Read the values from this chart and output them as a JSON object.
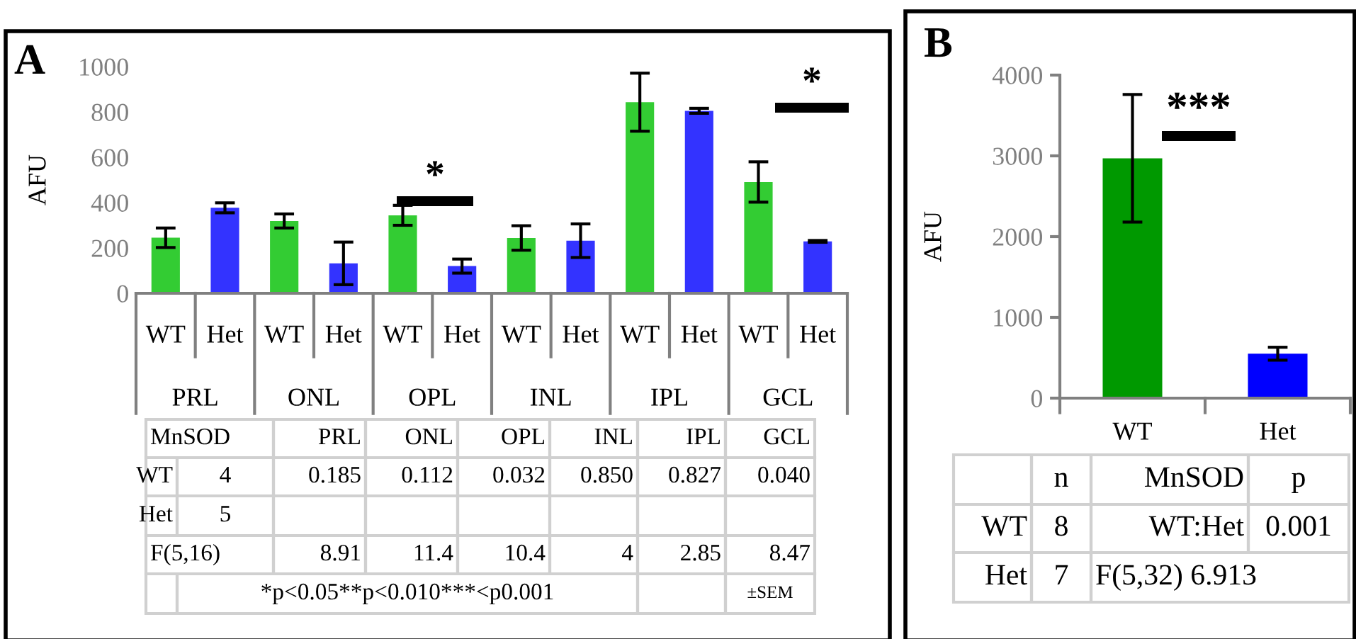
{
  "chart_data": [
    {
      "type": "bar",
      "title": "A",
      "ylabel": "AFU",
      "categories": [
        "PRL",
        "ONL",
        "OPL",
        "INL",
        "IPL",
        "GCL"
      ],
      "series": [
        {
          "name": "WT",
          "color": "#33cc33",
          "values": [
            245,
            319,
            344,
            244,
            843,
            491
          ],
          "errors": [
            43,
            31,
            44,
            54,
            128,
            89
          ]
        },
        {
          "name": "Het",
          "color": "#3333ff",
          "values": [
            377,
            132,
            120,
            232,
            805,
            229
          ],
          "errors": [
            22,
            94,
            31,
            74,
            11,
            4
          ]
        }
      ],
      "ylim": [
        0,
        1000
      ],
      "yticks": [
        0,
        200,
        400,
        600,
        800,
        1000
      ],
      "grid": false,
      "legend": false,
      "annotations": [
        "*",
        "*",
        "MnSOD",
        "PRL",
        "ONL",
        "OPL",
        "INL",
        "IPL",
        "GCL",
        "WT",
        "4",
        "0.185",
        "0.112",
        "0.032",
        "0.850",
        "0.827",
        "0.040",
        "Het",
        "5",
        "F(5,16)",
        "8.91",
        "11.4",
        "10.4",
        "4",
        "2.85",
        "8.47",
        "*p<0.05**p<0.010***<p0.001",
        "±SEM"
      ]
    },
    {
      "type": "bar",
      "title": "B",
      "ylabel": "AFU",
      "categories": [
        "WT",
        "Het"
      ],
      "colors": [
        "#009900",
        "#0000ff"
      ],
      "values": [
        2970,
        550
      ],
      "errors": [
        790,
        80
      ],
      "ylim": [
        0,
        4000
      ],
      "yticks": [
        0,
        1000,
        2000,
        3000,
        4000
      ],
      "grid": false,
      "legend": false,
      "annotations": [
        "***",
        "n",
        "MnSOD",
        "p",
        "WT",
        "8",
        "WT:Het",
        "0.001",
        "Het",
        "7",
        "F(5,32) 6.913"
      ]
    }
  ]
}
